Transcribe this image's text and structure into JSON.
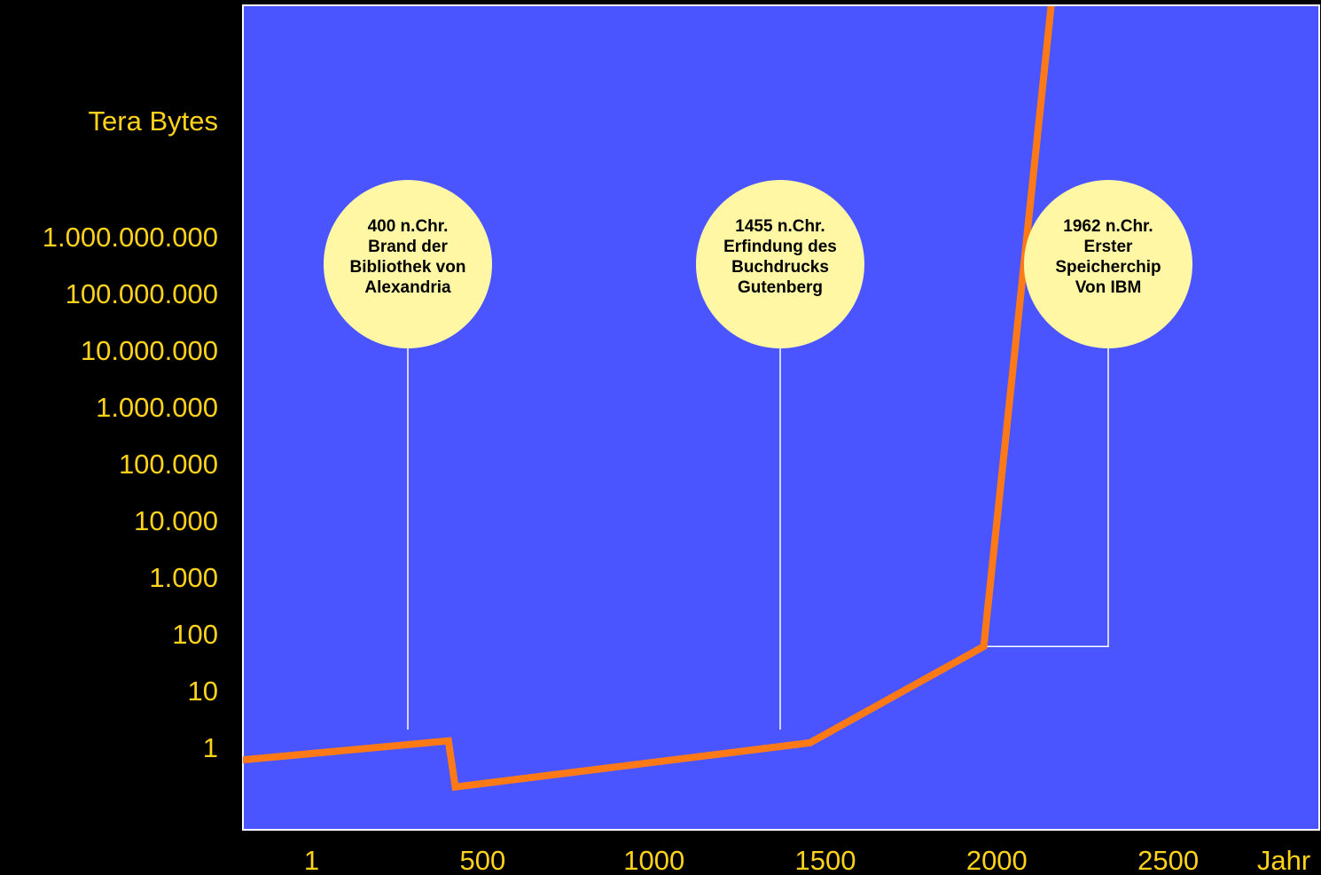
{
  "chart_data": {
    "type": "line",
    "ylabel": "Tera Bytes",
    "xlabel": "Jahr",
    "y_scale": "log",
    "x_ticks": [
      "1",
      "500",
      "1000",
      "1500",
      "2000",
      "2500"
    ],
    "y_ticks": [
      "1",
      "10",
      "100",
      "1.000",
      "10.000",
      "100.000",
      "1.000.000",
      "10.000.000",
      "100.000.000",
      "1.000.000.000"
    ],
    "xlim": [
      -200,
      3100
    ],
    "series": [
      {
        "values": [
          {
            "x": -200,
            "y": 0.6
          },
          {
            "x": 400,
            "y": 1.3
          },
          {
            "x": 420,
            "y": 0.2
          },
          {
            "x": 1455,
            "y": 1.2
          },
          {
            "x": 1962,
            "y": 60
          },
          {
            "x": 2180,
            "y": 200000000000000
          }
        ]
      }
    ],
    "annotations": [
      {
        "x": 400,
        "lines": [
          "400 n.Chr.",
          "Brand der",
          "Bibliothek von",
          "Alexandria"
        ]
      },
      {
        "x": 1455,
        "lines": [
          "1455 n.Chr.",
          "Erfindung des",
          "Buchdrucks",
          "Gutenberg"
        ]
      },
      {
        "x": 1962,
        "lines": [
          "1962 n.Chr.",
          "Erster",
          "Speicherchip",
          "Von IBM"
        ]
      }
    ]
  },
  "colors": {
    "background": "#000000",
    "plot_area": "#4b55ff",
    "line": "#ff7a16",
    "axis_text": "#ffd21c",
    "bubble_fill": "#fff7a3",
    "bubble_text": "#000000",
    "leader": "#ffffff"
  }
}
